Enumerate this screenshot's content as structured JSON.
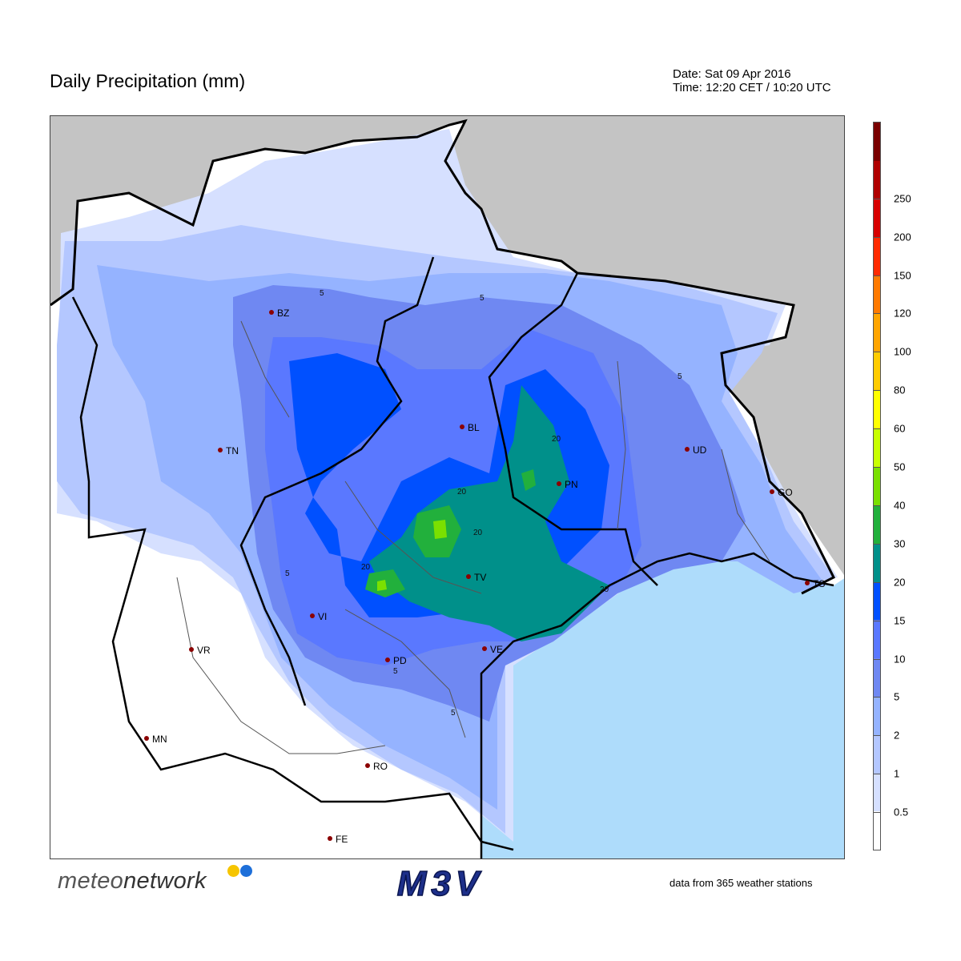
{
  "header": {
    "title": "Daily Precipitation (mm)",
    "date_line": "Date: Sat 09 Apr 2016",
    "time_line": "Time: 12:20 CET / 10:20 UTC"
  },
  "legend": {
    "labels": [
      "250",
      "200",
      "150",
      "120",
      "100",
      "80",
      "60",
      "50",
      "40",
      "30",
      "20",
      "15",
      "10",
      "5",
      "2",
      "1",
      "0.5"
    ],
    "colors": [
      "#7a0000",
      "#b00000",
      "#d80000",
      "#ff2a00",
      "#ff7a00",
      "#ffa500",
      "#ffcc00",
      "#ffff00",
      "#c8ff00",
      "#7ae000",
      "#22b03c",
      "#00908a",
      "#0050ff",
      "#5a78ff",
      "#6f88f2",
      "#95b3ff",
      "#b4c7ff",
      "#d6e0ff",
      "#ffffff"
    ]
  },
  "cities": [
    {
      "code": "BZ"
    },
    {
      "code": "TN"
    },
    {
      "code": "BL"
    },
    {
      "code": "UD"
    },
    {
      "code": "PN"
    },
    {
      "code": "GO"
    },
    {
      "code": "TV"
    },
    {
      "code": "TS"
    },
    {
      "code": "VI"
    },
    {
      "code": "VE"
    },
    {
      "code": "VR"
    },
    {
      "code": "PD"
    },
    {
      "code": "MN"
    },
    {
      "code": "RO"
    },
    {
      "code": "FE"
    }
  ],
  "contour_labels": [
    "5",
    "5",
    "5",
    "5",
    "5",
    "5",
    "20",
    "20",
    "20",
    "20",
    "20"
  ],
  "branding": {
    "meteonetwork_prefix": "meteo",
    "meteonetwork_suffix": "network",
    "m3v": "M3V",
    "stations_note": "data from 365 weather stations"
  },
  "colors": {
    "sea": "#aedcfb",
    "outside": "#c4c4c4",
    "land_no_rain": "#ffffff",
    "city_dot": "#8b0000",
    "dot_yellow": "#f6c500",
    "dot_blue": "#1e6fd9"
  }
}
